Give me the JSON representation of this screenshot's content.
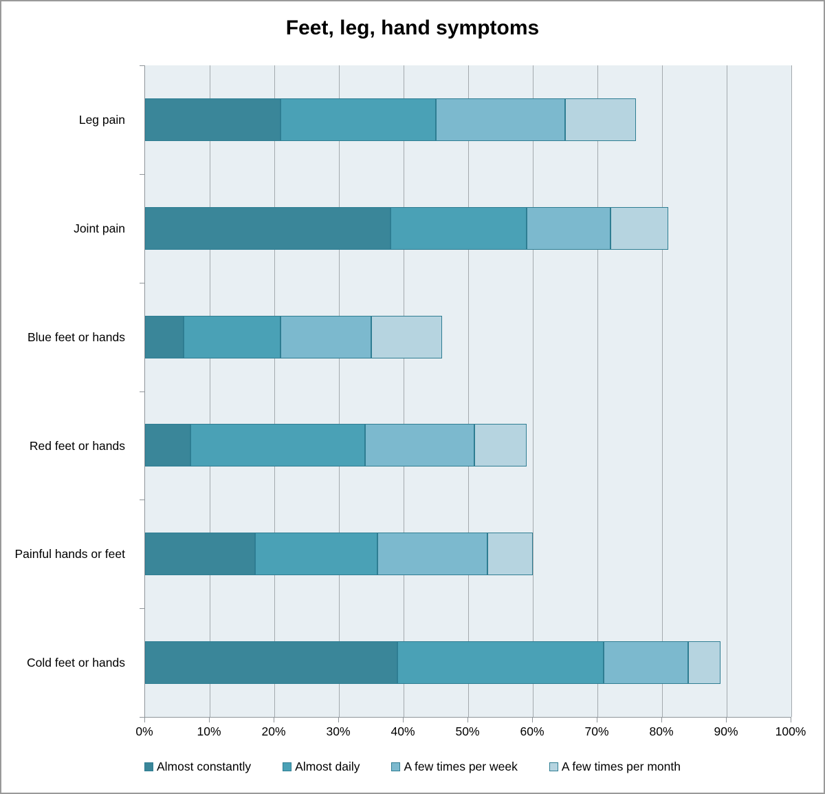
{
  "chart_data": {
    "type": "bar",
    "orientation": "horizontal",
    "stacked": true,
    "title": "Feet, leg, hand symptoms",
    "categories": [
      "Leg pain",
      "Joint pain",
      "Blue feet or hands",
      "Red feet or hands",
      "Painful hands or feet",
      "Cold feet or hands"
    ],
    "series": [
      {
        "name": "Almost constantly",
        "values": [
          21,
          38,
          6,
          7,
          17,
          39
        ]
      },
      {
        "name": "Almost daily",
        "values": [
          24,
          21,
          15,
          27,
          19,
          32
        ]
      },
      {
        "name": "A few times per week",
        "values": [
          20,
          13,
          14,
          17,
          17,
          13
        ]
      },
      {
        "name": "A few times per month",
        "values": [
          11,
          9,
          11,
          8,
          7,
          5
        ]
      }
    ],
    "totals": [
      76,
      81,
      46,
      59,
      60,
      89
    ],
    "x_axis": {
      "min": 0,
      "max": 100,
      "tick_step": 10,
      "tick_labels": [
        "0%",
        "10%",
        "20%",
        "30%",
        "40%",
        "50%",
        "60%",
        "70%",
        "80%",
        "90%",
        "100%"
      ]
    },
    "legend_position": "bottom",
    "grid": true
  },
  "colors": {
    "series": [
      "#3A8699",
      "#4AA1B6",
      "#7CB9CE",
      "#B6D4E0"
    ],
    "bar_border": "#2E7D92",
    "plot_background": "#E8EFF3",
    "gridline": "#A3A9AD",
    "axis": "#8E9499",
    "frame_border": "#999999",
    "title_text": "#000000",
    "label_text": "#000000"
  }
}
